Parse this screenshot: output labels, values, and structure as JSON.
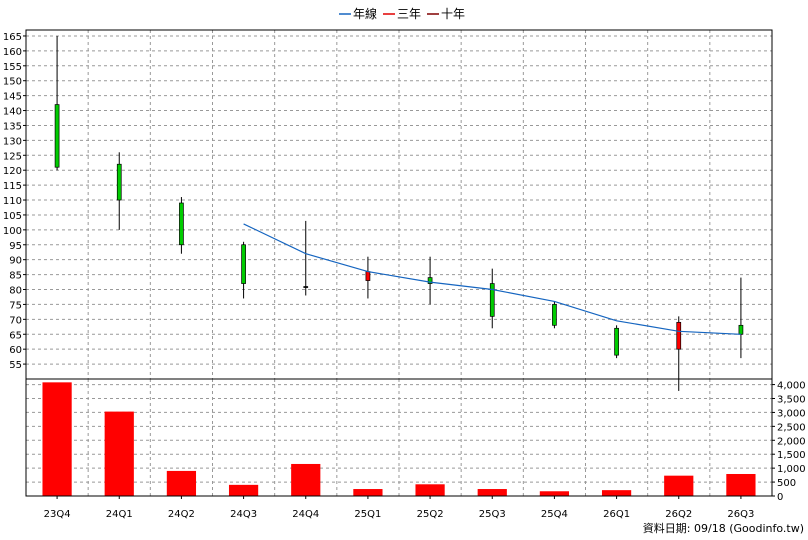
{
  "legend": [
    {
      "label": "年線",
      "color": "#1565c0"
    },
    {
      "label": "三年",
      "color": "#e00000"
    },
    {
      "label": "十年",
      "color": "#800000"
    }
  ],
  "footer": "資料日期: 09/18 (Goodinfo.tw)",
  "chart_data": [
    {
      "type": "candlestick",
      "categories": [
        "23Q4",
        "24Q1",
        "24Q2",
        "24Q3",
        "24Q4",
        "25Q1",
        "25Q2",
        "25Q3",
        "25Q4",
        "26Q1",
        "26Q2",
        "26Q3"
      ],
      "ohlc": [
        {
          "open": 142,
          "high": 165,
          "low": 120,
          "close": 121
        },
        {
          "open": 122,
          "high": 126,
          "low": 100,
          "close": 110
        },
        {
          "open": 109,
          "high": 111,
          "low": 92,
          "close": 95
        },
        {
          "open": 95,
          "high": 96,
          "low": 77,
          "close": 82
        },
        {
          "open": 81,
          "high": 103,
          "low": 78,
          "close": 81
        },
        {
          "open": 83,
          "high": 91,
          "low": 77,
          "close": 86
        },
        {
          "open": 84,
          "high": 91,
          "low": 75,
          "close": 82
        },
        {
          "open": 82,
          "high": 87,
          "low": 67,
          "close": 71
        },
        {
          "open": 75,
          "high": 76,
          "low": 67,
          "close": 68
        },
        {
          "open": 67,
          "high": 68,
          "low": 57,
          "close": 58
        },
        {
          "open": 60,
          "high": 71,
          "low": 46,
          "close": 69
        },
        {
          "open": 68,
          "high": 84,
          "low": 57,
          "close": 65
        }
      ],
      "line": {
        "name": "年線",
        "values": [
          null,
          null,
          null,
          102,
          92,
          86,
          82.5,
          80,
          76,
          69.5,
          66,
          65
        ]
      },
      "ylim": [
        50,
        167
      ],
      "yticks": [
        55,
        60,
        65,
        70,
        75,
        80,
        85,
        90,
        95,
        100,
        105,
        110,
        115,
        120,
        125,
        130,
        135,
        140,
        145,
        150,
        155,
        160,
        165
      ],
      "up_color": "#ff0000",
      "down_color": "#00cc00",
      "grid": true
    },
    {
      "type": "bar",
      "categories": [
        "23Q4",
        "24Q1",
        "24Q2",
        "24Q3",
        "24Q4",
        "25Q1",
        "25Q2",
        "25Q3",
        "25Q4",
        "26Q1",
        "26Q2",
        "26Q3"
      ],
      "values": [
        4080,
        3030,
        900,
        400,
        1150,
        250,
        420,
        250,
        170,
        210,
        730,
        790
      ],
      "ylim": [
        0,
        4200
      ],
      "yticks": [
        0,
        500,
        1000,
        1500,
        2000,
        2500,
        3000,
        3500,
        4000
      ],
      "ytick_labels": [
        "0",
        "500",
        "1,000",
        "1,500",
        "2,000",
        "2,500",
        "3,000",
        "3,500",
        "4,000"
      ],
      "color": "#ff0000",
      "grid": true
    }
  ]
}
